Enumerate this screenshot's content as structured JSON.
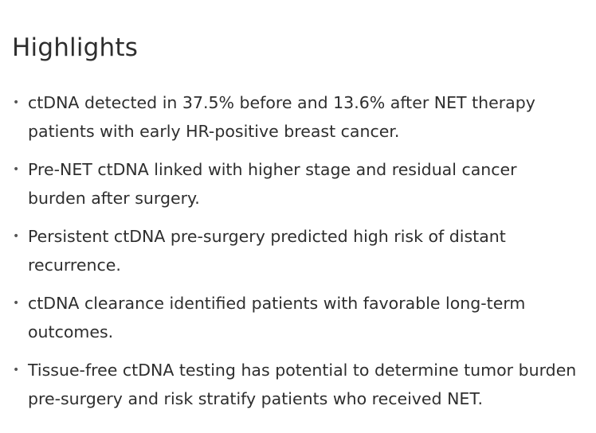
{
  "highlights": {
    "title": "Highlights",
    "items": [
      "ctDNA detected in 37.5% before and 13.6% after NET therapy patients with early HR-positive breast cancer.",
      "Pre-NET ctDNA linked with higher stage and residual cancer burden after surgery.",
      "Persistent ctDNA pre-surgery predicted high risk of distant recurrence.",
      "ctDNA clearance identified patients with favorable long-term outcomes.",
      "Tissue-free ctDNA testing has potential to determine tumor burden pre-surgery and risk stratify patients who received NET."
    ],
    "bullet": "•"
  }
}
